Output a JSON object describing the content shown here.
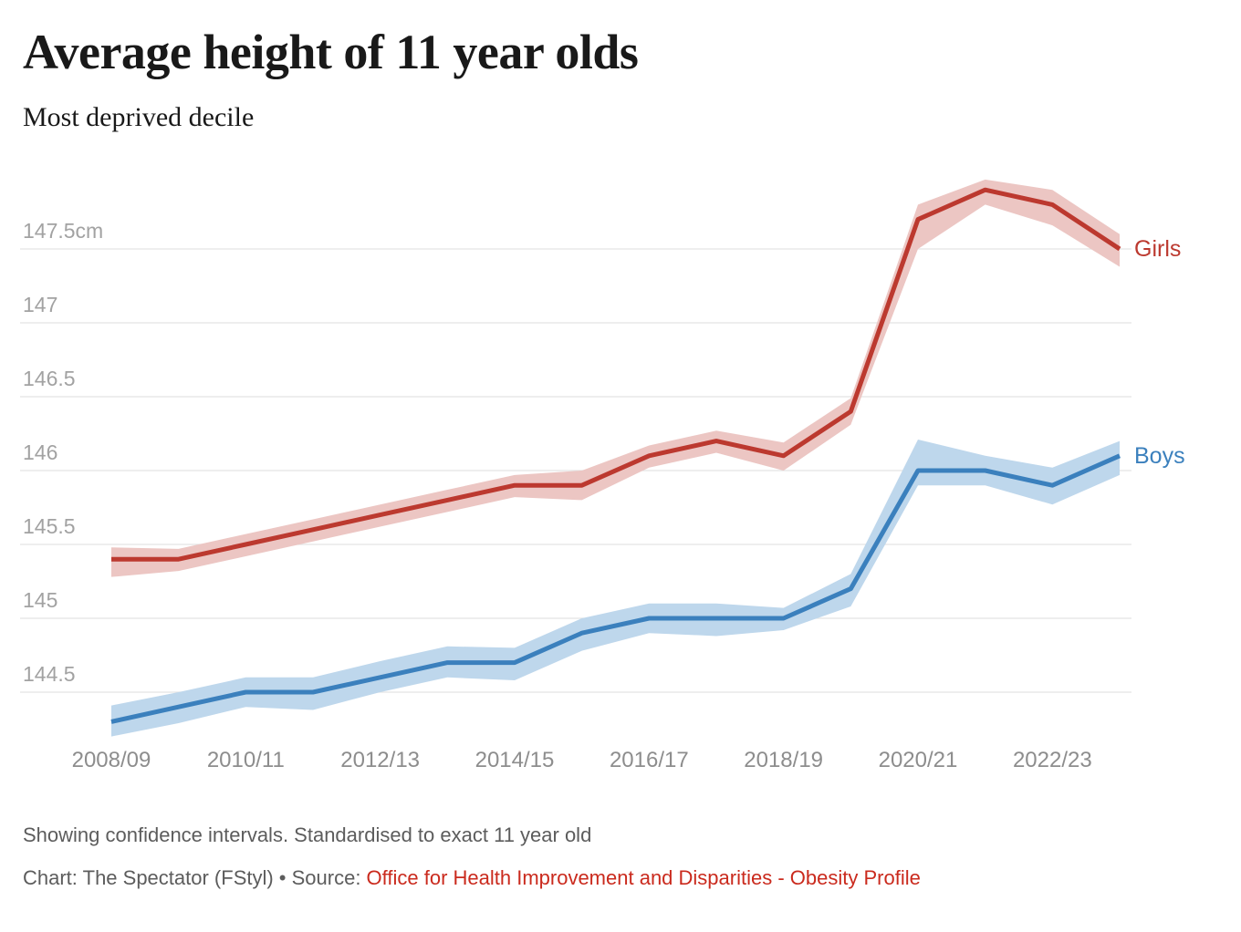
{
  "header": {
    "title": "Average height of 11 year olds",
    "subtitle": "Most deprived decile"
  },
  "chart_data": {
    "type": "line",
    "title": "Average height of 11 year olds",
    "subtitle": "Most deprived decile",
    "unit": "cm",
    "grid": "horizontal",
    "legend_position": "line-end-labels",
    "ylim": [
      144.1,
      148.1
    ],
    "categories": [
      "2008/09",
      "2009/10",
      "2010/11",
      "2011/12",
      "2012/13",
      "2013/14",
      "2014/15",
      "2015/16",
      "2016/17",
      "2017/18",
      "2018/19",
      "2019/20",
      "2020/21",
      "2021/22",
      "2022/23",
      "2023/24"
    ],
    "x_tick_labels": [
      {
        "index": 0,
        "label": "2008/09"
      },
      {
        "index": 2,
        "label": "2010/11"
      },
      {
        "index": 4,
        "label": "2012/13"
      },
      {
        "index": 6,
        "label": "2014/15"
      },
      {
        "index": 8,
        "label": "2016/17"
      },
      {
        "index": 10,
        "label": "2018/19"
      },
      {
        "index": 12,
        "label": "2020/21"
      },
      {
        "index": 14,
        "label": "2022/23"
      }
    ],
    "y_ticks": [
      {
        "value": 147.5,
        "label": "147.5cm"
      },
      {
        "value": 147,
        "label": "147"
      },
      {
        "value": 146.5,
        "label": "146.5"
      },
      {
        "value": 146,
        "label": "146"
      },
      {
        "value": 145.5,
        "label": "145.5"
      },
      {
        "value": 145,
        "label": "145"
      },
      {
        "value": 144.5,
        "label": "144.5"
      }
    ],
    "series": [
      {
        "name": "Girls",
        "color": "#bc392f",
        "band_color": "#ecc6c3",
        "values": [
          145.4,
          145.4,
          145.5,
          145.6,
          145.7,
          145.8,
          145.9,
          145.9,
          146.1,
          146.2,
          146.1,
          146.4,
          147.7,
          147.9,
          147.8,
          147.5
        ],
        "ci_low": [
          145.28,
          145.32,
          145.42,
          145.52,
          145.62,
          145.72,
          145.82,
          145.8,
          146.02,
          146.12,
          146.0,
          146.31,
          147.5,
          147.8,
          147.66,
          147.38
        ],
        "ci_high": [
          145.48,
          145.47,
          145.57,
          145.67,
          145.77,
          145.87,
          145.97,
          146.0,
          146.17,
          146.27,
          146.19,
          146.49,
          147.8,
          147.97,
          147.9,
          147.6
        ]
      },
      {
        "name": "Boys",
        "color": "#3b80bd",
        "band_color": "#bed7ec",
        "values": [
          144.3,
          144.4,
          144.5,
          144.5,
          144.6,
          144.7,
          144.7,
          144.9,
          145.0,
          145.0,
          145.0,
          145.2,
          146.0,
          146.0,
          145.9,
          146.1
        ],
        "ci_low": [
          144.2,
          144.29,
          144.4,
          144.38,
          144.5,
          144.6,
          144.58,
          144.78,
          144.9,
          144.88,
          144.92,
          145.08,
          145.9,
          145.9,
          145.77,
          145.97
        ],
        "ci_high": [
          144.41,
          144.5,
          144.6,
          144.6,
          144.71,
          144.81,
          144.8,
          145.0,
          145.1,
          145.1,
          145.07,
          145.3,
          146.21,
          146.1,
          146.02,
          146.2
        ]
      }
    ],
    "footnote": "Showing confidence intervals. Standardised to exact 11 year old",
    "credit_prefix": "Chart: The Spectator (FStyl) • Source: ",
    "source_link_text": "Office for Health Improvement and Disparities - Obesity Profile",
    "colors": {
      "girls_line": "#bc392f",
      "girls_band": "#ecc6c3",
      "boys_line": "#3b80bd",
      "boys_band": "#bed7ec",
      "grid": "#e3e3e3",
      "y_tick_text": "#a2a2a2",
      "x_tick_text": "#8d8d8d",
      "footer_text": "#5c5c5c",
      "source_link": "#ca2a1d"
    }
  }
}
